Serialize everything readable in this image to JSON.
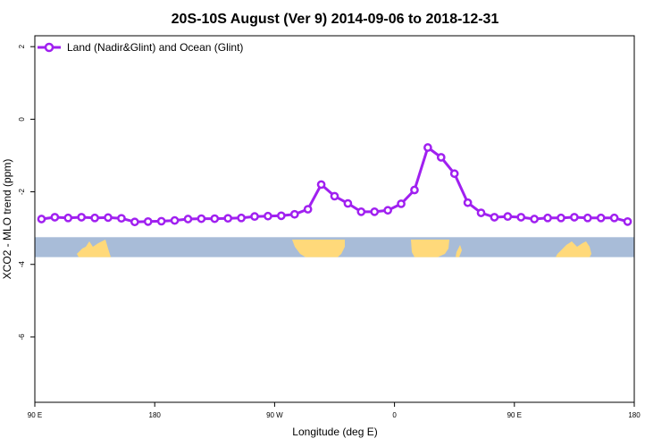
{
  "chart_data": {
    "type": "line",
    "title": "20S-10S August (Ver 9)   2014-09-06 to 2018-12-31",
    "xlabel": "Longitude (deg E)",
    "ylabel": "XCO2 - MLO trend (ppm)",
    "x_ticks": [
      {
        "value": 90,
        "label": "90 E"
      },
      {
        "value": 180,
        "label": "180"
      },
      {
        "value": 270,
        "label": "90 W"
      },
      {
        "value": 360,
        "label": "0"
      },
      {
        "value": 450,
        "label": "90 E"
      },
      {
        "value": 540,
        "label": "180"
      }
    ],
    "y_ticks": [
      2,
      0,
      -2,
      -4,
      -6
    ],
    "xlim": [
      90,
      540
    ],
    "ylim": [
      -7.8,
      2.3
    ],
    "grid": false,
    "legend_position": "top-left",
    "series": [
      {
        "name": "Land (Nadir&Glint) and Ocean (Glint)",
        "color": "#a020f0",
        "x": [
          95,
          105,
          115,
          125,
          135,
          145,
          155,
          165,
          175,
          185,
          195,
          205,
          215,
          225,
          235,
          245,
          255,
          265,
          275,
          285,
          295,
          305,
          315,
          325,
          335,
          345,
          355,
          365,
          375,
          385,
          395,
          405,
          415,
          425,
          435,
          445,
          455,
          465,
          475,
          485,
          495,
          505,
          515,
          525,
          535
        ],
        "y": [
          -2.75,
          -2.7,
          -2.72,
          -2.7,
          -2.72,
          -2.71,
          -2.73,
          -2.83,
          -2.82,
          -2.81,
          -2.79,
          -2.75,
          -2.74,
          -2.74,
          -2.73,
          -2.72,
          -2.68,
          -2.67,
          -2.66,
          -2.62,
          -2.48,
          -1.8,
          -2.12,
          -2.32,
          -2.55,
          -2.55,
          -2.51,
          -2.33,
          -1.95,
          -0.78,
          -1.05,
          -1.5,
          -2.3,
          -2.58,
          -2.7,
          -2.68,
          -2.7,
          -2.75,
          -2.72,
          -2.72,
          -2.7,
          -2.72,
          -2.72,
          -2.72,
          -2.82
        ]
      }
    ],
    "map_strip": {
      "y_top": -3.25,
      "y_bottom": -3.8,
      "ocean_color": "#a8bcd8",
      "land_color": "#ffd97a"
    }
  }
}
